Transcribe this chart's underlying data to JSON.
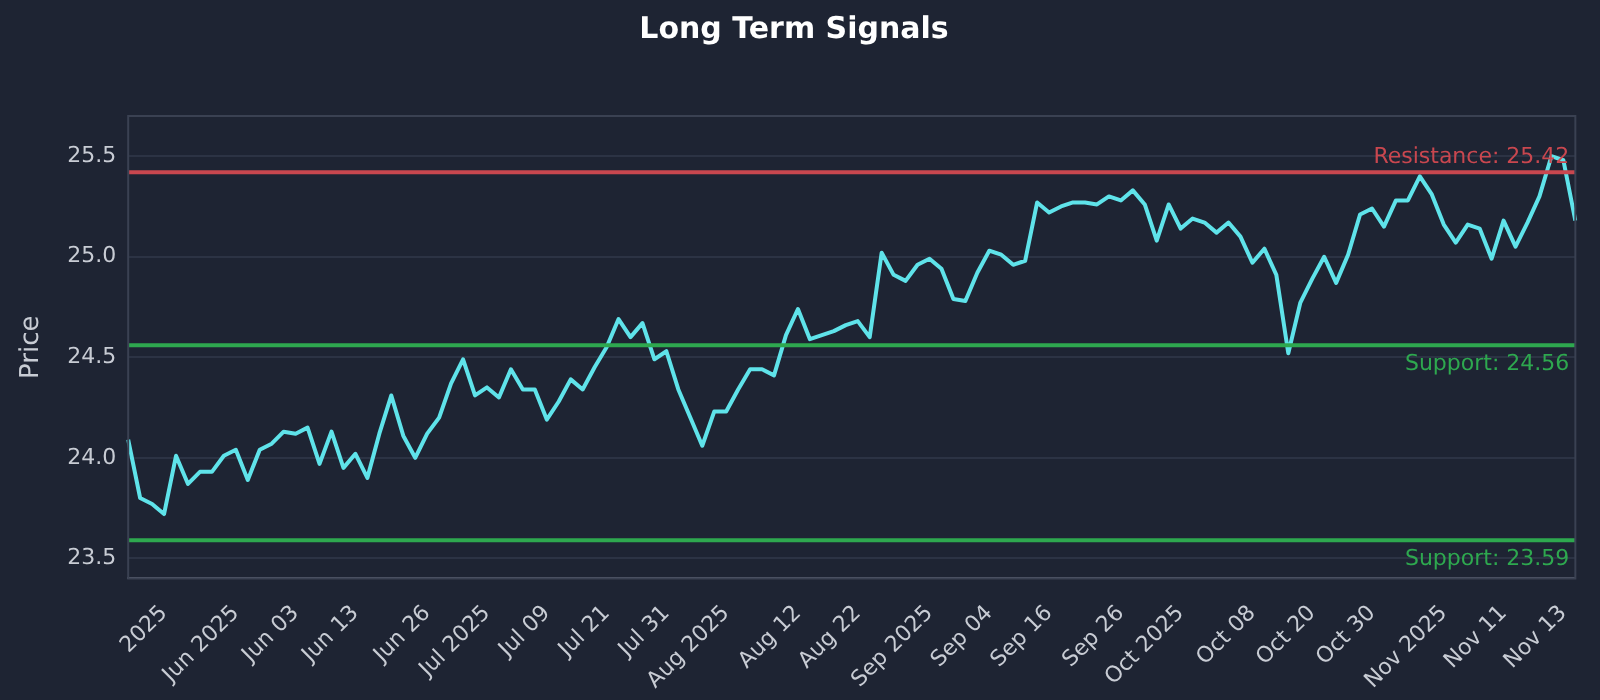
{
  "chart_data": {
    "type": "line",
    "title": "Long Term Signals",
    "ylabel": "Price",
    "categories": [
      null,
      null,
      null,
      "2025",
      null,
      null,
      null,
      null,
      null,
      "Jun 2025",
      null,
      null,
      null,
      null,
      "Jun 03",
      null,
      null,
      null,
      null,
      "Jun 13",
      null,
      null,
      null,
      null,
      null,
      "Jun 26",
      null,
      null,
      null,
      null,
      "Jul 2025",
      null,
      null,
      null,
      null,
      "Jul 09",
      null,
      null,
      null,
      null,
      "Jul 21",
      null,
      null,
      null,
      null,
      "Jul 31",
      null,
      null,
      null,
      null,
      "Aug 2025",
      null,
      null,
      null,
      null,
      null,
      "Aug 12",
      null,
      null,
      null,
      null,
      "Aug 22",
      null,
      null,
      null,
      null,
      null,
      "Sep 2025",
      null,
      null,
      null,
      null,
      "Sep 04",
      null,
      null,
      null,
      null,
      "Sep 16",
      null,
      null,
      null,
      null,
      null,
      "Sep 26",
      null,
      null,
      null,
      null,
      "Oct 2025",
      null,
      null,
      null,
      null,
      null,
      "Oct 08",
      null,
      null,
      null,
      null,
      "Oct 20",
      null,
      null,
      null,
      null,
      "Oct 30",
      null,
      null,
      null,
      null,
      null,
      "Nov 2025",
      null,
      null,
      null,
      null,
      "Nov 11",
      null,
      null,
      null,
      null,
      "Nov 13",
      null
    ],
    "series": [
      {
        "color": "#5fe3ea",
        "values": [
          24.09,
          23.8,
          23.77,
          23.72,
          24.01,
          23.87,
          23.93,
          23.93,
          24.01,
          24.04,
          23.89,
          24.04,
          24.07,
          24.13,
          24.12,
          24.15,
          23.97,
          24.13,
          23.95,
          24.02,
          23.9,
          24.12,
          24.31,
          24.11,
          24.0,
          24.12,
          24.2,
          24.37,
          24.49,
          24.31,
          24.35,
          24.3,
          24.44,
          24.34,
          24.34,
          24.19,
          24.28,
          24.39,
          24.34,
          24.45,
          24.55,
          24.69,
          24.6,
          24.67,
          24.49,
          24.53,
          24.34,
          24.2,
          24.06,
          24.23,
          24.23,
          24.34,
          24.44,
          24.44,
          24.41,
          24.61,
          24.74,
          24.59,
          24.61,
          24.63,
          24.66,
          24.68,
          24.6,
          25.02,
          24.91,
          24.88,
          24.96,
          24.99,
          24.94,
          24.79,
          24.78,
          24.92,
          25.03,
          25.01,
          24.96,
          24.98,
          25.27,
          25.22,
          25.25,
          25.27,
          25.27,
          25.26,
          25.3,
          25.28,
          25.33,
          25.26,
          25.08,
          25.26,
          25.14,
          25.19,
          25.17,
          25.12,
          25.17,
          25.1,
          24.97,
          25.04,
          24.91,
          24.52,
          24.77,
          24.89,
          25.0,
          24.87,
          25.01,
          25.21,
          25.24,
          25.15,
          25.28,
          25.28,
          25.4,
          25.31,
          25.16,
          25.07,
          25.16,
          25.14,
          24.99,
          25.18,
          25.05,
          25.17,
          25.3,
          25.5,
          25.48,
          25.18
        ]
      }
    ],
    "ylim": [
      23.4,
      25.7
    ],
    "yticks": [
      23.5,
      {
        "value": 24,
        "label": "24.0"
      },
      24.5,
      {
        "value": 25,
        "label": "25.0"
      },
      25.5
    ],
    "grid": "y",
    "legend": false,
    "marker": "none",
    "line_style": "solid",
    "ref_lines": [
      {
        "axis": "y",
        "value": 25.42,
        "label": "Resistance: 25.42",
        "color": "#c9474f"
      },
      {
        "axis": "y",
        "value": 24.56,
        "label": "Support: 24.56",
        "color": "#2ea84f"
      },
      {
        "axis": "y",
        "value": 23.59,
        "label": "Support: 23.59",
        "color": "#2ea84f"
      }
    ]
  }
}
